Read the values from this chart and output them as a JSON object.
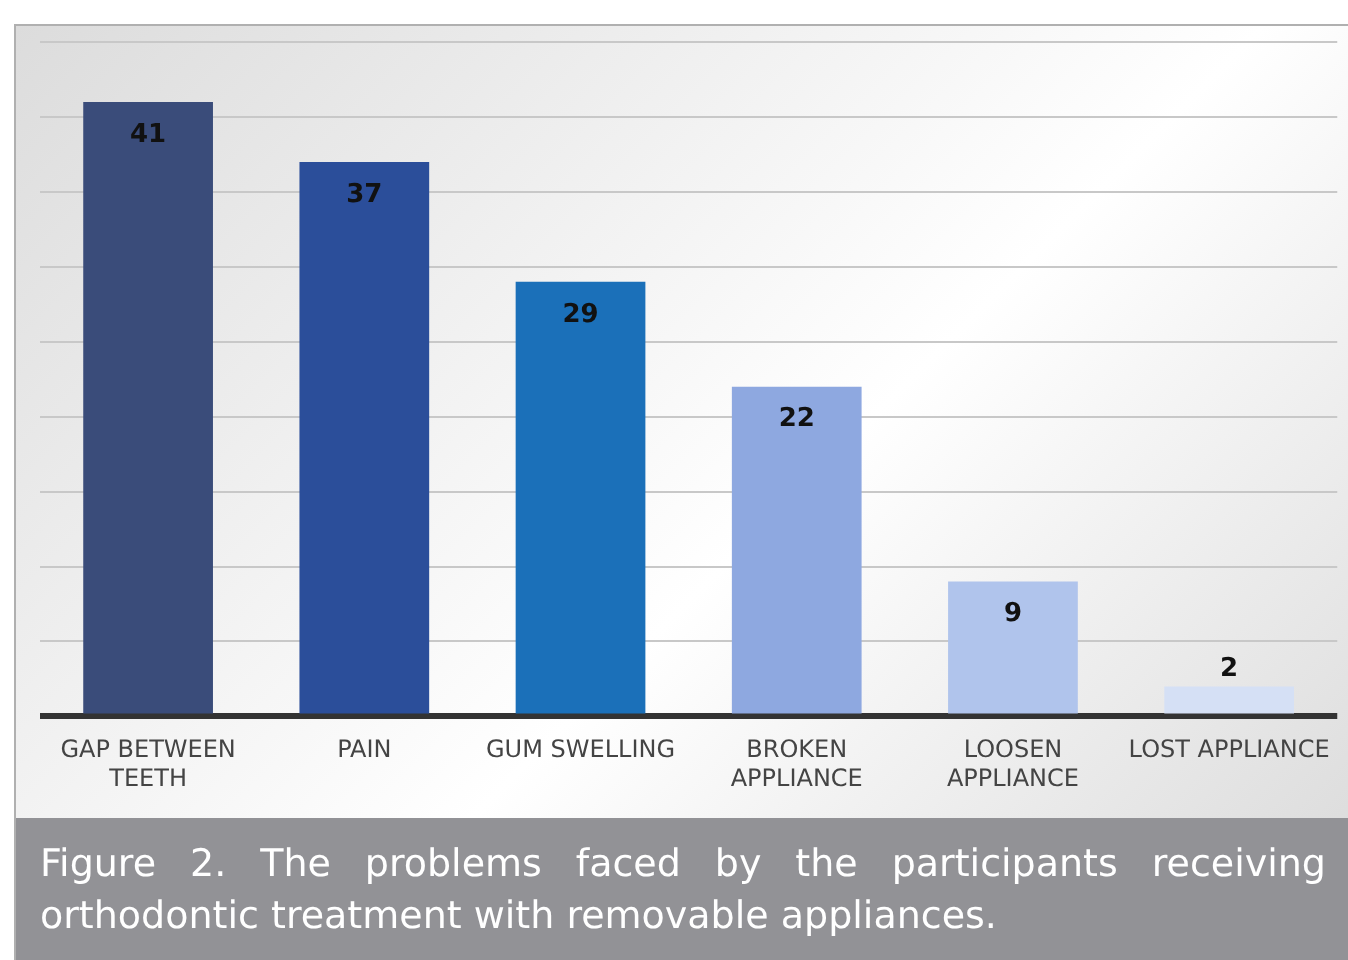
{
  "chart_data": {
    "type": "bar",
    "categories": [
      "GAP BETWEEN TEETH",
      "PAIN",
      "GUM SWELLING",
      "BROKEN APPLIANCE",
      "LOOSEN APPLIANCE",
      "LOST APPLIANCE"
    ],
    "values": [
      41,
      37,
      29,
      22,
      9,
      2
    ],
    "colors": [
      "#3a4c7a",
      "#2b4e9a",
      "#1b70b9",
      "#8ea8e0",
      "#b0c4ec",
      "#d5e0f5"
    ],
    "ylim": [
      0,
      45
    ],
    "yticks": [
      {
        "value": 0,
        "label": null
      },
      {
        "value": 5,
        "label": null
      },
      {
        "value": 10,
        "label": null
      },
      {
        "value": 15,
        "label": null
      },
      {
        "value": 20,
        "label": null
      },
      {
        "value": 25,
        "label": null
      },
      {
        "value": 30,
        "label": null
      },
      {
        "value": 35,
        "label": null
      },
      {
        "value": 40,
        "label": null
      },
      {
        "value": 45,
        "label": null
      }
    ],
    "tick_labels": "x",
    "grid": "y",
    "data_labels": true,
    "annotations": [
      "Figure 2. The problems faced by the participants receiving orthodontic treatment with removable appliances."
    ]
  }
}
